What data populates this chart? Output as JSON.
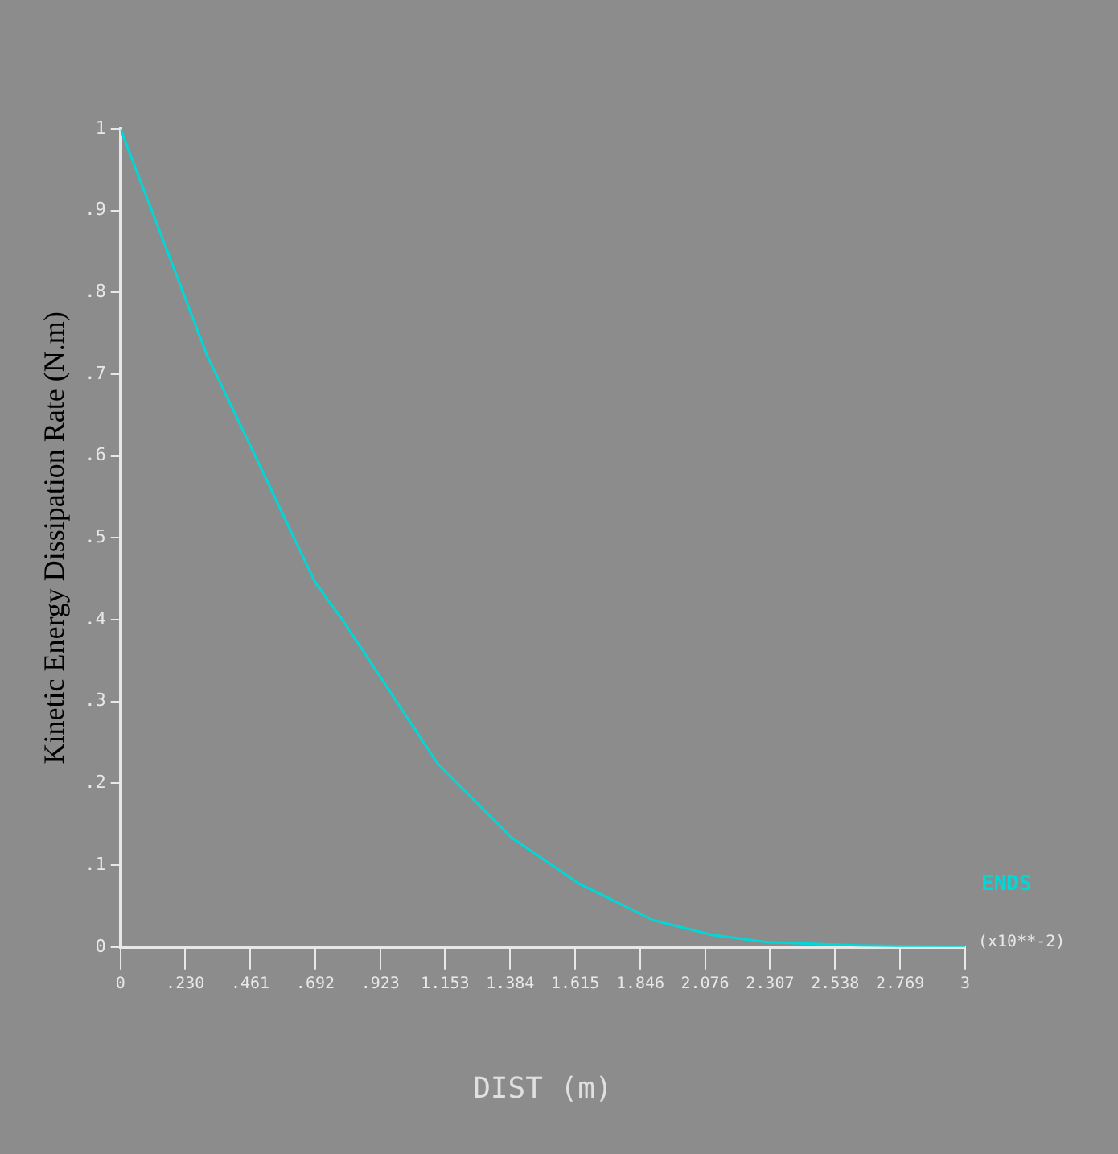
{
  "chart_data": {
    "type": "line",
    "xlabel": "DIST (m)",
    "ylabel": "Kinetic Energy Dissipation Rate (N.m)",
    "annotations": [
      "(x10**-2)"
    ],
    "x": [
      0,
      0.115,
      0.309,
      0.479,
      0.691,
      0.794,
      1.127,
      1.388,
      1.63,
      1.691,
      1.891,
      2.097,
      2.297,
      2.618,
      3
    ],
    "series": [
      {
        "name": "ENDS",
        "color": "#00d8d8",
        "values": [
          1,
          0.897,
          0.722,
          0.6,
          0.446,
          0.397,
          0.224,
          0.134,
          0.077,
          0.067,
          0.033,
          0.015,
          0.006,
          0.002,
          0
        ]
      }
    ],
    "xlim": [
      0,
      3
    ],
    "xticks": [
      0,
      {
        "value": 0.23,
        "label": ".230"
      },
      {
        "value": 0.461,
        "label": ".461"
      },
      {
        "value": 0.692,
        "label": ".692"
      },
      {
        "value": 0.923,
        "label": ".923"
      },
      {
        "value": 1.153,
        "label": "1.153"
      },
      {
        "value": 1.384,
        "label": "1.384"
      },
      {
        "value": 1.615,
        "label": "1.615"
      },
      {
        "value": 1.846,
        "label": "1.846"
      },
      {
        "value": 2.076,
        "label": "2.076"
      },
      {
        "value": 2.307,
        "label": "2.307"
      },
      {
        "value": 2.538,
        "label": "2.538"
      },
      {
        "value": 2.769,
        "label": "2.769"
      },
      3
    ],
    "ylim": [
      0,
      1
    ],
    "yticks": [
      0,
      {
        "value": 0.1,
        "label": ".1"
      },
      {
        "value": 0.2,
        "label": ".2"
      },
      {
        "value": 0.3,
        "label": ".3"
      },
      {
        "value": 0.4,
        "label": ".4"
      },
      {
        "value": 0.5,
        "label": ".5"
      },
      {
        "value": 0.6,
        "label": ".6"
      },
      {
        "value": 0.7,
        "label": ".7"
      },
      {
        "value": 0.8,
        "label": ".8"
      },
      {
        "value": 0.9,
        "label": ".9"
      },
      1
    ],
    "grid": false,
    "legend": "right",
    "marker": "none",
    "line_style": "solid"
  }
}
